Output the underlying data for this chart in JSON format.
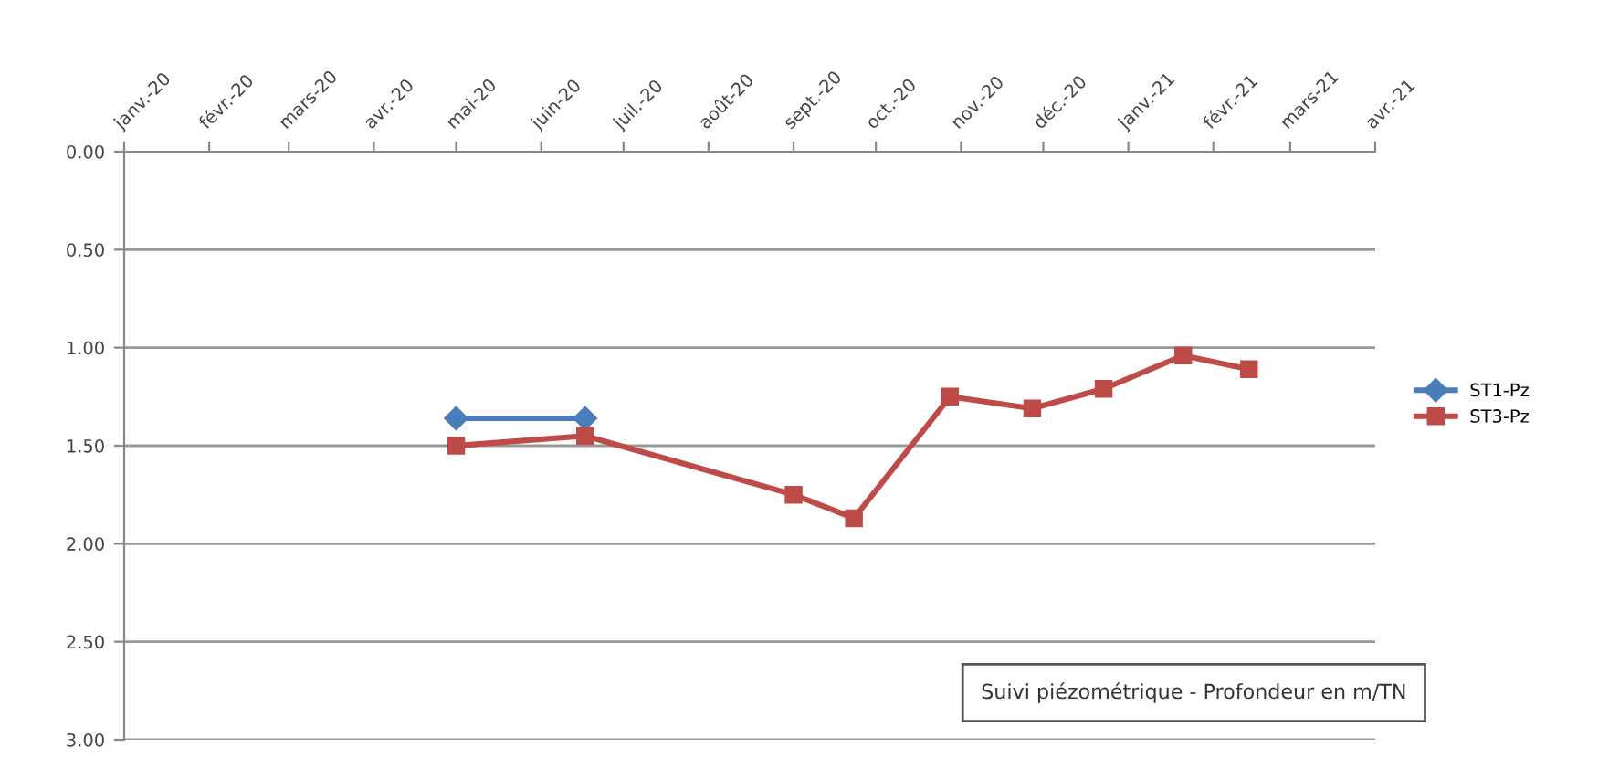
{
  "chart_data": {
    "type": "line",
    "title": "Suivi piézométrique - Profondeur en m/TN",
    "series": [
      {
        "name": "ST1-Pz",
        "color": "#4a7ebb",
        "marker": "diamond",
        "x": [
          "2020-05-01",
          "2020-06-17"
        ],
        "values": [
          1.36,
          1.36
        ]
      },
      {
        "name": "ST3-Pz",
        "color": "#be4b48",
        "marker": "square",
        "x": [
          "2020-05-01",
          "2020-06-17",
          "2020-09-01",
          "2020-09-23",
          "2020-10-28",
          "2020-11-27",
          "2020-12-23",
          "2021-01-21",
          "2021-02-14"
        ],
        "values": [
          1.5,
          1.45,
          1.75,
          1.87,
          1.25,
          1.31,
          1.21,
          1.04,
          1.11
        ]
      }
    ],
    "xlim": [
      "2020-01-01",
      "2021-04-01"
    ],
    "xticks": [
      {
        "value": "2020-01-01",
        "label": "janv.-20"
      },
      {
        "value": "2020-02-01",
        "label": "févr.-20"
      },
      {
        "value": "2020-03-01",
        "label": "mars-20"
      },
      {
        "value": "2020-04-01",
        "label": "avr.-20"
      },
      {
        "value": "2020-05-01",
        "label": "mai-20"
      },
      {
        "value": "2020-06-01",
        "label": "juin-20"
      },
      {
        "value": "2020-07-01",
        "label": "juil.-20"
      },
      {
        "value": "2020-08-01",
        "label": "août-20"
      },
      {
        "value": "2020-09-01",
        "label": "sept.-20"
      },
      {
        "value": "2020-10-01",
        "label": "oct.-20"
      },
      {
        "value": "2020-11-01",
        "label": "nov.-20"
      },
      {
        "value": "2020-12-01",
        "label": "déc.-20"
      },
      {
        "value": "2021-01-01",
        "label": "janv.-21"
      },
      {
        "value": "2021-02-01",
        "label": "févr.-21"
      },
      {
        "value": "2021-03-01",
        "label": "mars-21"
      },
      {
        "value": "2021-04-01",
        "label": "avr.-21"
      }
    ],
    "ylim": [
      3.0,
      0.0
    ],
    "yticks": [
      {
        "value": 0,
        "label": "0.00"
      },
      {
        "value": 0.5,
        "label": "0.50"
      },
      {
        "value": 1.0,
        "label": "1.00"
      },
      {
        "value": 1.5,
        "label": "1.50"
      },
      {
        "value": 2.0,
        "label": "2.00"
      },
      {
        "value": 2.5,
        "label": "2.50"
      },
      {
        "value": 3.0,
        "label": "3.00"
      }
    ],
    "grid": "y",
    "legend": "right",
    "line_style": "solid"
  }
}
